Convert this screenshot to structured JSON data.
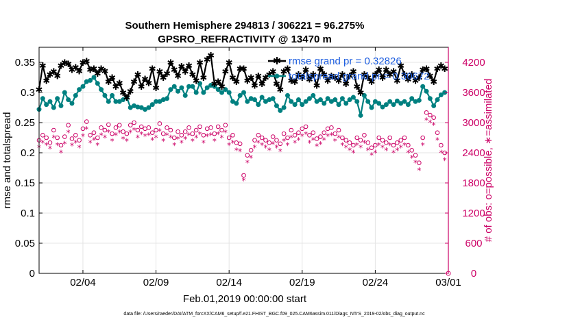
{
  "colors": {
    "rmse": "#000000",
    "spread": "#008080",
    "obs": "#CC0066",
    "legend_text": "#1F5FE0"
  },
  "chart_data": {
    "type": "line",
    "title_line1": "Southern Hemisphere 294813 / 306221 = 96.275%",
    "title_line2": "GPSRO_REFRACTIVITY @ 13470 m",
    "xlabel": "Feb.01,2019 00:00:00 start",
    "ylabel_left": "rmse and totalspread",
    "ylabel_right": "# of obs: o=possible, ∗=assimilated",
    "xlim": [
      0,
      28
    ],
    "ylim_left": [
      0,
      0.375
    ],
    "ylim_right": [
      0,
      4500
    ],
    "x_ticks": [
      {
        "value": 3,
        "label": "02/04"
      },
      {
        "value": 8,
        "label": "02/09"
      },
      {
        "value": 13,
        "label": "02/14"
      },
      {
        "value": 18,
        "label": "02/19"
      },
      {
        "value": 23,
        "label": "02/24"
      },
      {
        "value": 28,
        "label": "03/01"
      }
    ],
    "y_ticks_left": [
      {
        "value": 0,
        "label": "0"
      },
      {
        "value": 0.05,
        "label": "0.05"
      },
      {
        "value": 0.1,
        "label": "0.1"
      },
      {
        "value": 0.15,
        "label": "0.15"
      },
      {
        "value": 0.2,
        "label": "0.2"
      },
      {
        "value": 0.25,
        "label": "0.25"
      },
      {
        "value": 0.3,
        "label": "0.3"
      },
      {
        "value": 0.35,
        "label": "0.35"
      }
    ],
    "y_ticks_right": [
      {
        "value": 0,
        "label": "0"
      },
      {
        "value": 600,
        "label": "600"
      },
      {
        "value": 1200,
        "label": "1200"
      },
      {
        "value": 1800,
        "label": "1800"
      },
      {
        "value": 2400,
        "label": "2400"
      },
      {
        "value": 3000,
        "label": "3000"
      },
      {
        "value": 3600,
        "label": "3600"
      },
      {
        "value": 4200,
        "label": "4200"
      }
    ],
    "x": [
      0.0,
      0.25,
      0.5,
      0.75,
      1.0,
      1.25,
      1.5,
      1.75,
      2.0,
      2.25,
      2.5,
      2.75,
      3.0,
      3.25,
      3.5,
      3.75,
      4.0,
      4.25,
      4.5,
      4.75,
      5.0,
      5.25,
      5.5,
      5.75,
      6.0,
      6.25,
      6.5,
      6.75,
      7.0,
      7.25,
      7.5,
      7.75,
      8.0,
      8.25,
      8.5,
      8.75,
      9.0,
      9.25,
      9.5,
      9.75,
      10.0,
      10.25,
      10.5,
      10.75,
      11.0,
      11.25,
      11.5,
      11.75,
      12.0,
      12.25,
      12.5,
      12.75,
      13.0,
      13.25,
      13.5,
      13.75,
      14.0,
      14.25,
      14.5,
      14.75,
      15.0,
      15.25,
      15.5,
      15.75,
      16.0,
      16.25,
      16.5,
      16.75,
      17.0,
      17.25,
      17.5,
      17.75,
      18.0,
      18.25,
      18.5,
      18.75,
      19.0,
      19.25,
      19.5,
      19.75,
      20.0,
      20.25,
      20.5,
      20.75,
      21.0,
      21.25,
      21.5,
      21.75,
      22.0,
      22.25,
      22.5,
      22.75,
      23.0,
      23.25,
      23.5,
      23.75,
      24.0,
      24.25,
      24.5,
      24.75,
      25.0,
      25.25,
      25.5,
      25.75,
      26.0,
      26.25,
      26.5,
      26.75,
      27.0,
      27.25,
      27.5,
      27.75
    ],
    "series": [
      {
        "name": "rmse grand pr = 0.32826",
        "axis": "left",
        "values": [
          0.305,
          0.345,
          0.32,
          0.33,
          0.335,
          0.328,
          0.345,
          0.35,
          0.348,
          0.338,
          0.342,
          0.336,
          0.35,
          0.352,
          0.338,
          0.34,
          0.332,
          0.34,
          0.336,
          0.318,
          0.325,
          0.31,
          0.316,
          0.3,
          0.292,
          0.302,
          0.318,
          0.33,
          0.31,
          0.323,
          0.316,
          0.34,
          0.308,
          0.335,
          0.325,
          0.332,
          0.35,
          0.338,
          0.328,
          0.344,
          0.335,
          0.345,
          0.33,
          0.32,
          0.35,
          0.325,
          0.355,
          0.362,
          0.315,
          0.318,
          0.31,
          0.335,
          0.35,
          0.325,
          0.318,
          0.34,
          0.34,
          0.32,
          0.325,
          0.312,
          0.328,
          0.315,
          0.325,
          0.33,
          0.335,
          0.315,
          0.305,
          0.335,
          0.34,
          0.32,
          0.318,
          0.33,
          0.325,
          0.338,
          0.322,
          0.33,
          0.312,
          0.34,
          0.33,
          0.32,
          0.328,
          0.325,
          0.32,
          0.33,
          0.315,
          0.328,
          0.335,
          0.31,
          0.3,
          0.33,
          0.325,
          0.318,
          0.33,
          0.338,
          0.325,
          0.338,
          0.33,
          0.335,
          0.32,
          0.345,
          0.33,
          0.322,
          0.33,
          0.32,
          0.325,
          0.338,
          0.34,
          0.328,
          0.318,
          0.34,
          0.345,
          0.34
        ]
      },
      {
        "name": "totalspread grand pr = 0.30672",
        "axis": "left",
        "values": [
          0.272,
          0.29,
          0.28,
          0.285,
          0.275,
          0.29,
          0.278,
          0.3,
          0.288,
          0.282,
          0.295,
          0.305,
          0.31,
          0.318,
          0.32,
          0.325,
          0.315,
          0.305,
          0.295,
          0.285,
          0.295,
          0.285,
          0.285,
          0.288,
          0.292,
          0.275,
          0.278,
          0.276,
          0.275,
          0.272,
          0.275,
          0.28,
          0.285,
          0.285,
          0.288,
          0.29,
          0.305,
          0.31,
          0.302,
          0.308,
          0.295,
          0.31,
          0.31,
          0.3,
          0.315,
          0.3,
          0.308,
          0.312,
          0.31,
          0.305,
          0.3,
          0.305,
          0.3,
          0.285,
          0.282,
          0.295,
          0.3,
          0.285,
          0.29,
          0.288,
          0.28,
          0.292,
          0.285,
          0.288,
          0.29,
          0.278,
          0.27,
          0.275,
          0.295,
          0.285,
          0.28,
          0.288,
          0.28,
          0.285,
          0.29,
          0.295,
          0.285,
          0.288,
          0.282,
          0.29,
          0.285,
          0.288,
          0.28,
          0.29,
          0.282,
          0.288,
          0.292,
          0.285,
          0.262,
          0.295,
          0.285,
          0.275,
          0.285,
          0.282,
          0.276,
          0.28,
          0.285,
          0.28,
          0.286,
          0.282,
          0.285,
          0.28,
          0.29,
          0.285,
          0.287,
          0.31,
          0.302,
          0.29,
          0.278,
          0.288,
          0.296,
          0.3
        ]
      },
      {
        "name": "possible obs",
        "axis": "right",
        "marker": "o",
        "values": [
          2650,
          2750,
          2700,
          2600,
          2850,
          2700,
          2550,
          2720,
          2950,
          2680,
          2750,
          2650,
          2880,
          3020,
          2750,
          2800,
          2700,
          2900,
          2850,
          2960,
          2780,
          2900,
          2950,
          2820,
          2780,
          2950,
          3000,
          2850,
          2920,
          2880,
          2900,
          2800,
          2850,
          2980,
          2780,
          2900,
          2850,
          2700,
          2820,
          2750,
          2820,
          2900,
          2780,
          2850,
          2920,
          2750,
          2880,
          2900,
          2780,
          2920,
          2850,
          2950,
          2700,
          2750,
          2600,
          2580,
          1950,
          2350,
          2450,
          2650,
          2750,
          2700,
          2650,
          2600,
          2720,
          2650,
          2580,
          2780,
          2700,
          2850,
          2750,
          2800,
          2880,
          2920,
          2750,
          2800,
          2680,
          2720,
          2800,
          2880,
          2900,
          2780,
          2850,
          2700,
          2650,
          2600,
          2550,
          2700,
          2650,
          2750,
          2600,
          2500,
          2550,
          2700,
          2650,
          2600,
          2700,
          2550,
          2600,
          2650,
          2700,
          2550,
          2450,
          2350,
          2200,
          2700,
          3200,
          3150,
          3100,
          2800,
          2550,
          2400
        ]
      },
      {
        "name": "assimilated obs",
        "axis": "right",
        "marker": "*",
        "values": [
          2500,
          2600,
          2550,
          2480,
          2700,
          2550,
          2400,
          2580,
          2800,
          2540,
          2600,
          2500,
          2730,
          2870,
          2600,
          2650,
          2550,
          2750,
          2700,
          2810,
          2630,
          2750,
          2800,
          2670,
          2630,
          2800,
          2850,
          2700,
          2770,
          2730,
          2750,
          2650,
          2700,
          2830,
          2630,
          2750,
          2700,
          2550,
          2670,
          2600,
          2670,
          2750,
          2630,
          2700,
          2770,
          2600,
          2730,
          2750,
          2630,
          2770,
          2700,
          2800,
          2550,
          2600,
          2450,
          2430,
          1850,
          2200,
          2300,
          2500,
          2600,
          2550,
          2500,
          2450,
          2570,
          2500,
          2430,
          2630,
          2550,
          2700,
          2600,
          2650,
          2730,
          2770,
          2600,
          2650,
          2530,
          2570,
          2650,
          2730,
          2750,
          2630,
          2700,
          2550,
          2500,
          2450,
          2400,
          2550,
          2500,
          2600,
          2450,
          2350,
          2400,
          2550,
          2500,
          2450,
          2550,
          2400,
          2450,
          2500,
          2550,
          2400,
          2300,
          2200,
          2050,
          2550,
          3050,
          3000,
          2950,
          2650,
          2400,
          2250
        ]
      }
    ],
    "legend_location": "top-right"
  },
  "footnote": "data file: /Users/raeder/DAI/ATM_forcXX/CAM6_setup/f.e21.FHIST_BGC.f09_025.CAM6assim.011/Diags_NTrS_2019-02/obs_diag_output.nc"
}
